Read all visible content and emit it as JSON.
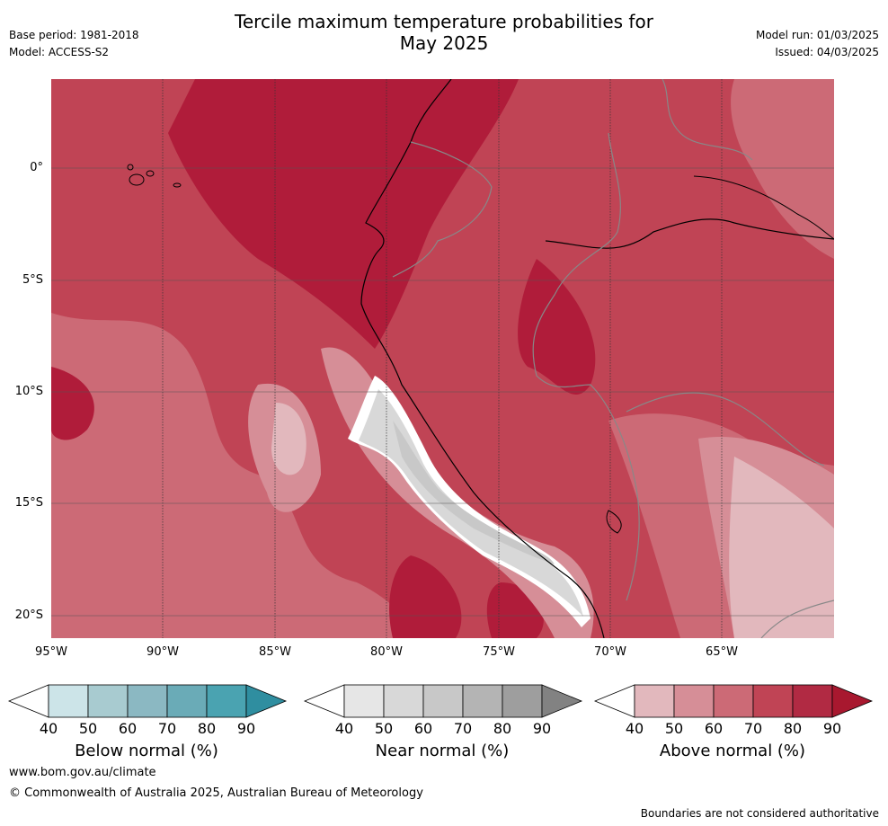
{
  "header": {
    "title_line1": "Tercile maximum temperature probabilities for",
    "title_line2": "May 2025",
    "base_period": "Base period: 1981-2018",
    "model": "Model: ACCESS-S2",
    "model_run": "Model run: 01/03/2025",
    "issued": "Issued: 04/03/2025"
  },
  "map": {
    "region": "Western South America",
    "lat_ticks": [
      "0°",
      "5°S",
      "10°S",
      "15°S",
      "20°S"
    ],
    "lon_ticks": [
      "95°W",
      "90°W",
      "85°W",
      "80°W",
      "75°W",
      "70°W",
      "65°W"
    ],
    "colors": {
      "above_90": "#b01c3a",
      "above_80": "#c04455",
      "above_70": "#cc6a76",
      "above_60": "#d68e97",
      "above_50": "#e2b8bd",
      "near_60": "#c8c8c8",
      "near_50": "#d8d8d8",
      "near_40": "#e6e6e6"
    }
  },
  "colorbars": [
    {
      "name": "Below normal (%)",
      "labels": [
        "40",
        "50",
        "60",
        "70",
        "80",
        "90"
      ],
      "colors": [
        "#cce4e8",
        "#a8cbd0",
        "#8bb8c2",
        "#6aabb7",
        "#4aa3b1",
        "#2f8ea0"
      ]
    },
    {
      "name": "Near normal (%)",
      "labels": [
        "40",
        "50",
        "60",
        "70",
        "80",
        "90"
      ],
      "colors": [
        "#e6e6e6",
        "#d8d8d8",
        "#c8c8c8",
        "#b4b4b4",
        "#9e9e9e",
        "#828282"
      ]
    },
    {
      "name": "Above normal (%)",
      "labels": [
        "40",
        "50",
        "60",
        "70",
        "80",
        "90"
      ],
      "colors": [
        "#e2b8bd",
        "#d68e97",
        "#cc6a76",
        "#c04455",
        "#b12a43",
        "#a8182f"
      ]
    }
  ],
  "footer": {
    "url": "www.bom.gov.au/climate",
    "copyright": "© Commonwealth of Australia 2025, Australian Bureau of Meteorology",
    "disclaimer": "Boundaries are not considered authoritative"
  }
}
